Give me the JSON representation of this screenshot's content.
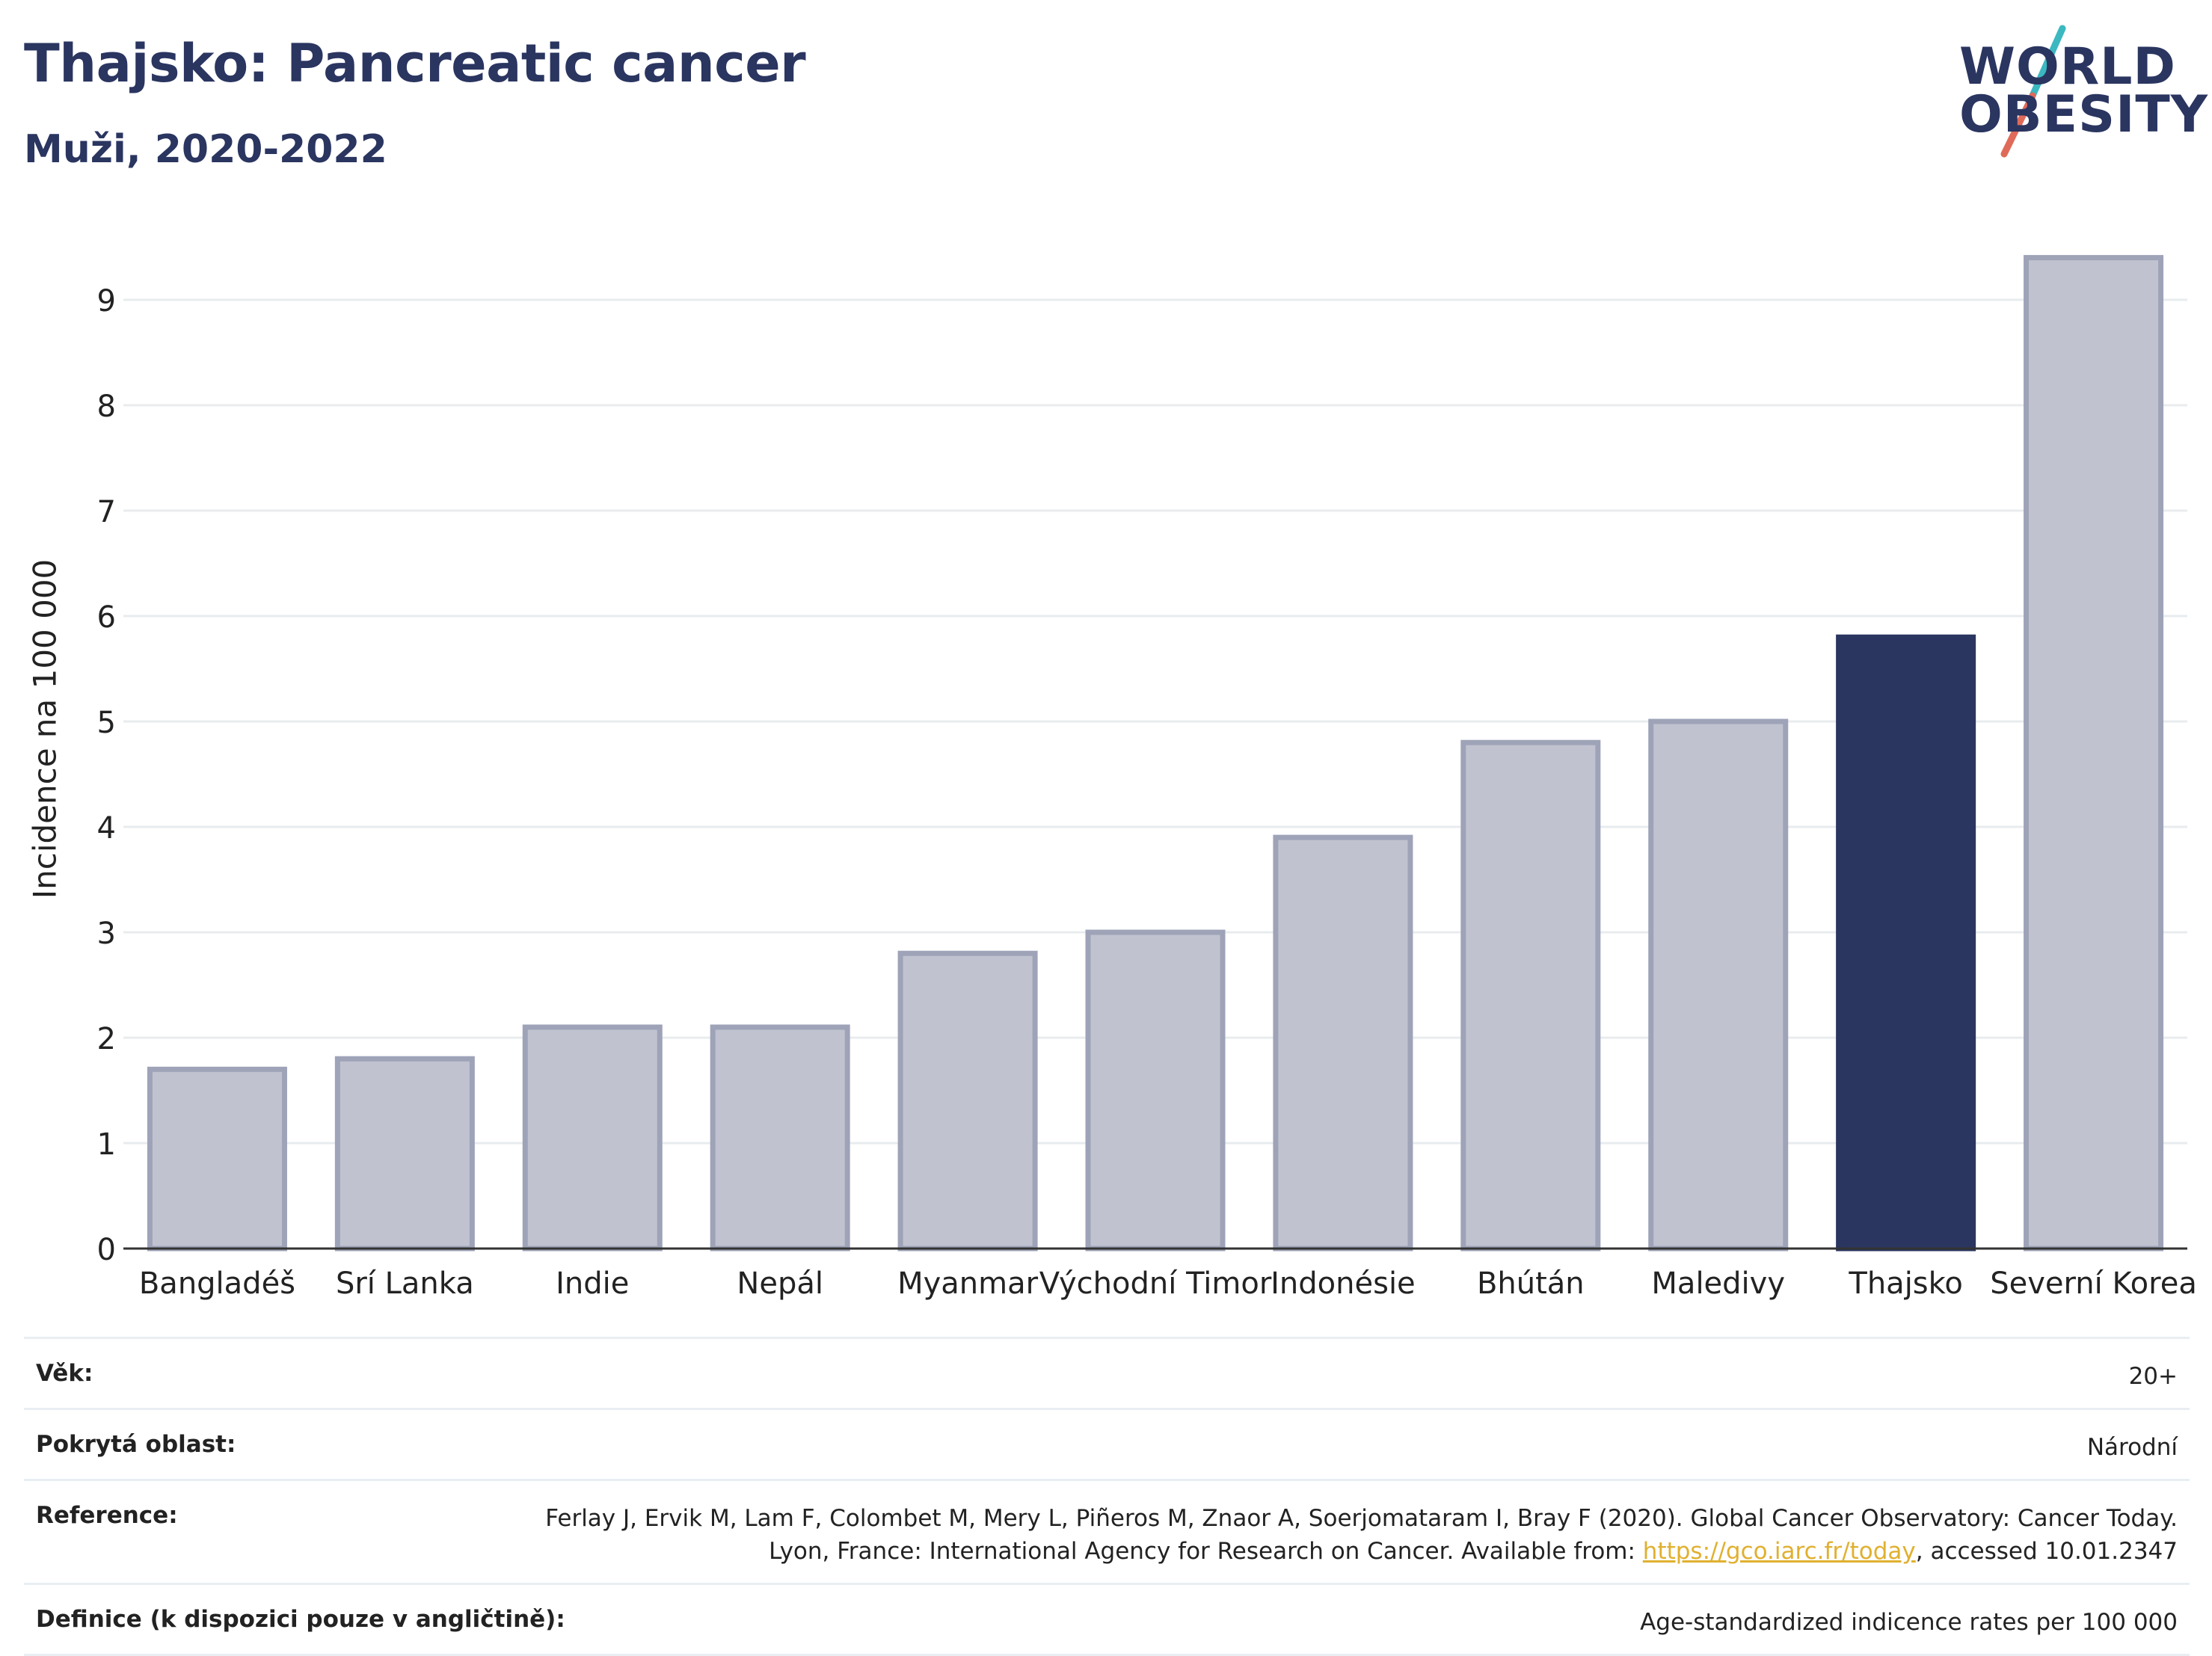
{
  "header": {
    "title": "Thajsko: Pancreatic cancer",
    "subtitle": "Muži, 2020-2022"
  },
  "logo": {
    "line1": "WORLD",
    "line2": "OBESITY"
  },
  "colors": {
    "highlight": "#2a3560",
    "bar_fill": "#c0c3cf",
    "bar_stroke": "#9ea3b8",
    "grid": "#e9ecef"
  },
  "chart_data": {
    "type": "bar",
    "categories": [
      "Bangladéš",
      "Srí Lanka",
      "Indie",
      "Nepál",
      "Myanmar",
      "Východní Timor",
      "Indonésie",
      "Bhútán",
      "Maledivy",
      "Thajsko",
      "Severní Korea"
    ],
    "values": [
      1.7,
      1.8,
      2.1,
      2.1,
      2.8,
      3.0,
      3.9,
      4.8,
      5.0,
      5.8,
      9.4
    ],
    "highlight": "Thajsko",
    "ylabel": "Incidence na 100 000",
    "ylim": [
      0,
      10
    ],
    "yticks": [
      0,
      1,
      2,
      3,
      4,
      5,
      6,
      7,
      8,
      9
    ],
    "grid": true
  },
  "info": {
    "age_label": "Věk:",
    "age_value": "20+",
    "area_label": "Pokrytá oblast:",
    "area_value": "Národní",
    "reference_label": "Reference:",
    "reference_text_1": "Ferlay J, Ervik M, Lam F, Colombet M, Mery L, Piñeros M, Znaor A, Soerjomataram I, Bray F (2020). Global Cancer Observatory: Cancer Today. Lyon, France: International Agency for Research on Cancer. Available from: ",
    "reference_link": "https://gco.iarc.fr/today",
    "reference_text_2": ", accessed 10.01.2347",
    "definition_label": "Definice (k dispozici pouze v angličtině):",
    "definition_value": "Age-standardized indicence rates per 100 000"
  }
}
